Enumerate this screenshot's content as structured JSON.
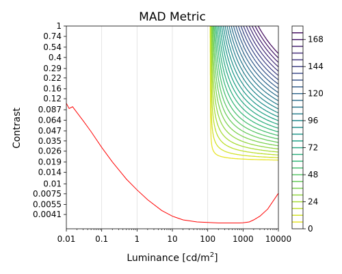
{
  "chart_data": {
    "type": "contour",
    "title": "MAD Metric",
    "xlabel_main": "Luminance [cd/m",
    "xlabel_sup": "2",
    "xlabel_end": "]",
    "ylabel": "Contrast",
    "x_scale": "log",
    "y_scale": "log",
    "xlim": [
      0.01,
      10000
    ],
    "ylim": [
      0.0027,
      1
    ],
    "x_ticks": [
      {
        "value": 0.01,
        "label": "0.01"
      },
      {
        "value": 0.1,
        "label": "0.1"
      },
      {
        "value": 1,
        "label": "1"
      },
      {
        "value": 10,
        "label": "10"
      },
      {
        "value": 100,
        "label": "100"
      },
      {
        "value": 1000,
        "label": "1000"
      },
      {
        "value": 10000,
        "label": "10000"
      }
    ],
    "y_ticks": [
      {
        "value": 1,
        "label": "1"
      },
      {
        "value": 0.74,
        "label": "0.74"
      },
      {
        "value": 0.54,
        "label": "0.54"
      },
      {
        "value": 0.4,
        "label": "0.4"
      },
      {
        "value": 0.29,
        "label": "0.29"
      },
      {
        "value": 0.22,
        "label": "0.22"
      },
      {
        "value": 0.16,
        "label": "0.16"
      },
      {
        "value": 0.12,
        "label": "0.12"
      },
      {
        "value": 0.087,
        "label": "0.087"
      },
      {
        "value": 0.064,
        "label": "0.064"
      },
      {
        "value": 0.047,
        "label": "0.047"
      },
      {
        "value": 0.035,
        "label": "0.035"
      },
      {
        "value": 0.026,
        "label": "0.026"
      },
      {
        "value": 0.019,
        "label": "0.019"
      },
      {
        "value": 0.014,
        "label": "0.014"
      },
      {
        "value": 0.01,
        "label": "0.01"
      },
      {
        "value": 0.0075,
        "label": "0.0075"
      },
      {
        "value": 0.0055,
        "label": "0.0055"
      },
      {
        "value": 0.0041,
        "label": "0.0041"
      }
    ],
    "grid": "vertical",
    "threshold_curve": {
      "color": "#ff0000",
      "x": [
        0.01,
        0.012,
        0.015,
        0.02,
        0.03,
        0.05,
        0.1,
        0.2,
        0.5,
        1,
        2,
        5,
        10,
        20,
        50,
        100,
        200,
        500,
        800,
        1000,
        1500,
        2000,
        3000,
        5000,
        10000
      ],
      "y": [
        0.105,
        0.09,
        0.095,
        0.08,
        0.063,
        0.046,
        0.029,
        0.019,
        0.0115,
        0.0084,
        0.0063,
        0.0046,
        0.0039,
        0.0035,
        0.0033,
        0.00325,
        0.0032,
        0.0032,
        0.0032,
        0.00322,
        0.0033,
        0.0035,
        0.0039,
        0.0048,
        0.0076
      ]
    },
    "contour_field": {
      "x_min": 118,
      "y_min": 0.019,
      "value_range": [
        0,
        180
      ],
      "levels": [
        6,
        12,
        18,
        24,
        30,
        36,
        42,
        48,
        54,
        60,
        66,
        72,
        78,
        84,
        90,
        96,
        102,
        108,
        114,
        120,
        126,
        132,
        138,
        144,
        150,
        156,
        162,
        168,
        174
      ]
    },
    "colorbar": {
      "colormap": "viridis_r",
      "range": [
        0,
        180
      ],
      "ticks": [
        {
          "value": 0,
          "label": "0"
        },
        {
          "value": 24,
          "label": "24"
        },
        {
          "value": 48,
          "label": "48"
        },
        {
          "value": 72,
          "label": "72"
        },
        {
          "value": 96,
          "label": "96"
        },
        {
          "value": 120,
          "label": "120"
        },
        {
          "value": 144,
          "label": "144"
        },
        {
          "value": 168,
          "label": "168"
        }
      ]
    }
  }
}
